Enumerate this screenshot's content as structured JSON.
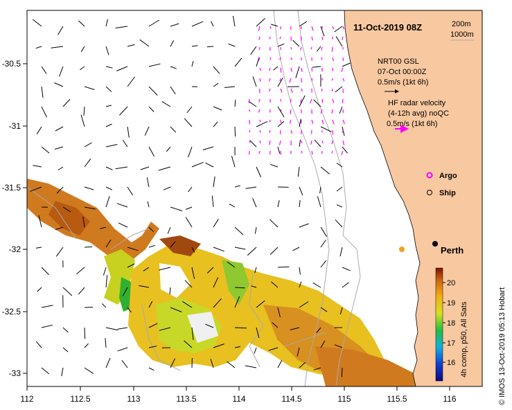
{
  "map": {
    "title": "11-Oct-2019 08Z",
    "depth_legend": [
      "200m",
      "1000m"
    ],
    "x_ticks": [
      "112",
      "112.5",
      "113",
      "113.5",
      "114",
      "114.5",
      "115",
      "115.5",
      "116"
    ],
    "y_ticks": [
      "-30.5",
      "-31",
      "-31.5",
      "-32",
      "-32.5",
      "-33"
    ],
    "lon_range": [
      112,
      116.3
    ],
    "lat_range": [
      -30.15,
      -33.1
    ]
  },
  "legend": {
    "gsl_title": "NRT00 GSL",
    "gsl_date": "07-Oct 00:00Z",
    "gsl_scale": "0.5m/s (1kt 6h)",
    "hf_title": "HF radar velocity",
    "hf_sub": "(4-12h avg) noQC",
    "hf_scale": "0.5m/s (1kt 6h)",
    "argo_label": "Argo",
    "ship_label": "Ship",
    "city_label": "Perth"
  },
  "colorbar": {
    "ticks": [
      "20",
      "19",
      "18",
      "17",
      "16"
    ],
    "caption": "4h comp, p50, All Sats"
  },
  "credit": "© IMOS 13-Oct-2019 05:13 Hobart",
  "colors": {
    "land": "#f8c8a0",
    "argo": "#ff00ff",
    "hf_vector": "#ff00ff"
  }
}
